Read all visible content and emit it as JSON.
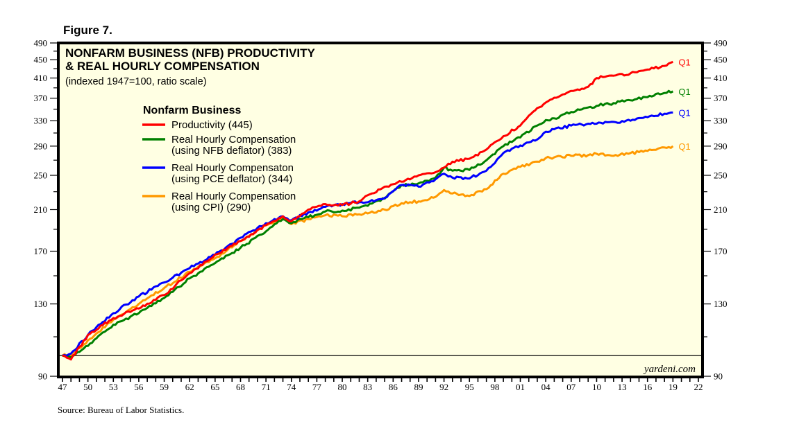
{
  "figure_label": "Figure 7.",
  "source": "Source: Bureau of Labor Statistics.",
  "watermark": "yardeni.com",
  "chart_data": {
    "type": "line",
    "title": "NONFARM BUSINESS (NFB) PRODUCTIVITY",
    "title_line2": "& REAL HOURLY COMPENSATION",
    "subtitle": "(indexed 1947=100, ratio scale)",
    "legend_title": "Nonfarm Business",
    "legend_position": "top-left",
    "y_scale": "log",
    "ylim": [
      90,
      490
    ],
    "y_ticks": [
      90,
      130,
      170,
      210,
      250,
      290,
      330,
      370,
      410,
      450,
      490
    ],
    "y_minor_ticks": [
      110,
      150,
      190,
      230,
      270,
      310,
      350,
      390,
      430,
      470
    ],
    "reference_line": 100,
    "xlim": [
      1947,
      2022
    ],
    "x_tick_labels": [
      "47",
      "50",
      "53",
      "56",
      "59",
      "62",
      "65",
      "68",
      "71",
      "74",
      "77",
      "80",
      "83",
      "86",
      "89",
      "92",
      "95",
      "98",
      "01",
      "04",
      "07",
      "10",
      "13",
      "16",
      "19",
      "22"
    ],
    "x_tick_years": [
      1947,
      1950,
      1953,
      1956,
      1959,
      1962,
      1965,
      1968,
      1971,
      1974,
      1977,
      1980,
      1983,
      1986,
      1989,
      1992,
      1995,
      1998,
      2001,
      2004,
      2007,
      2010,
      2013,
      2016,
      2019,
      2022
    ],
    "grid": false,
    "series": [
      {
        "name": "Productivity",
        "legend_label": "Productivity (445)",
        "legend_lines": [
          "Productivity (445)"
        ],
        "end_label": "Q1",
        "color": "#ff0000",
        "x": [
          1947,
          1948,
          1950,
          1953,
          1956,
          1959,
          1962,
          1965,
          1968,
          1971,
          1973,
          1974,
          1976,
          1978,
          1980,
          1982,
          1983,
          1985,
          1987,
          1989,
          1991,
          1992,
          1993,
          1995,
          1997,
          1999,
          2001,
          2003,
          2004,
          2005,
          2007,
          2009,
          2010,
          2012,
          2014,
          2016,
          2018,
          2019
        ],
        "values": [
          100,
          98,
          111,
          121,
          127,
          136,
          152,
          167,
          179,
          194,
          203,
          198,
          210,
          216,
          215,
          219,
          226,
          236,
          242,
          250,
          254,
          260,
          268,
          272,
          285,
          305,
          322,
          352,
          362,
          371,
          384,
          392,
          410,
          415,
          420,
          428,
          436,
          445
        ]
      },
      {
        "name": "Real Hourly Compensation (using NFB deflator)",
        "legend_label": "Real Hourly Compensation (using NFB deflator) (383)",
        "legend_lines": [
          "Real Hourly Compensation",
          "(using NFB deflator) (383)"
        ],
        "end_label": "Q1",
        "color": "#008000",
        "x": [
          1947,
          1948,
          1950,
          1953,
          1956,
          1959,
          1962,
          1965,
          1968,
          1971,
          1973,
          1974,
          1976,
          1978,
          1980,
          1982,
          1983,
          1985,
          1987,
          1989,
          1991,
          1992,
          1993,
          1995,
          1997,
          1999,
          2001,
          2003,
          2004,
          2005,
          2007,
          2009,
          2010,
          2012,
          2014,
          2016,
          2018,
          2019
        ],
        "values": [
          100,
          99,
          105,
          117,
          124,
          134,
          148,
          160,
          173,
          188,
          200,
          196,
          202,
          208,
          209,
          212,
          214,
          222,
          238,
          240,
          247,
          260,
          256,
          257,
          270,
          290,
          303,
          322,
          331,
          334,
          345,
          353,
          356,
          361,
          366,
          372,
          380,
          383
        ]
      },
      {
        "name": "Real Hourly Compensaton (using PCE deflator)",
        "legend_label": "Real Hourly Compensaton (using PCE deflator) (344)",
        "legend_lines": [
          "Real Hourly Compensaton",
          "(using PCE deflator) (344)"
        ],
        "end_label": "Q1",
        "color": "#0000ff",
        "x": [
          1947,
          1948,
          1950,
          1953,
          1956,
          1959,
          1962,
          1965,
          1968,
          1971,
          1973,
          1974,
          1976,
          1978,
          1980,
          1982,
          1983,
          1985,
          1987,
          1989,
          1991,
          1992,
          1993,
          1995,
          1997,
          1999,
          2001,
          2003,
          2004,
          2005,
          2007,
          2009,
          2010,
          2012,
          2014,
          2016,
          2018,
          2019
        ],
        "values": [
          100,
          101,
          111,
          124,
          135,
          145,
          156,
          167,
          182,
          196,
          203,
          199,
          207,
          213,
          216,
          218,
          218,
          223,
          238,
          236,
          245,
          252,
          247,
          246,
          256,
          280,
          291,
          300,
          312,
          316,
          322,
          325,
          325,
          328,
          330,
          336,
          342,
          344
        ]
      },
      {
        "name": "Real Hourly Compensation (using CPI)",
        "legend_label": "Real Hourly Compensation (using CPI) (290)",
        "legend_lines": [
          "Real Hourly Compensation",
          "(using CPI) (290)"
        ],
        "end_label": "Q1",
        "color": "#ff9900",
        "x": [
          1947,
          1948,
          1950,
          1953,
          1956,
          1959,
          1962,
          1965,
          1968,
          1971,
          1973,
          1974,
          1976,
          1978,
          1980,
          1982,
          1983,
          1985,
          1987,
          1989,
          1991,
          1992,
          1993,
          1995,
          1997,
          1999,
          2001,
          2003,
          2004,
          2005,
          2007,
          2009,
          2010,
          2012,
          2014,
          2016,
          2018,
          2019
        ],
        "values": [
          100,
          100,
          108,
          120,
          130,
          141,
          153,
          164,
          179,
          194,
          201,
          195,
          200,
          204,
          203,
          205,
          206,
          210,
          217,
          219,
          224,
          232,
          228,
          225,
          233,
          252,
          261,
          268,
          273,
          274,
          276,
          277,
          279,
          276,
          280,
          283,
          288,
          290
        ]
      }
    ]
  }
}
